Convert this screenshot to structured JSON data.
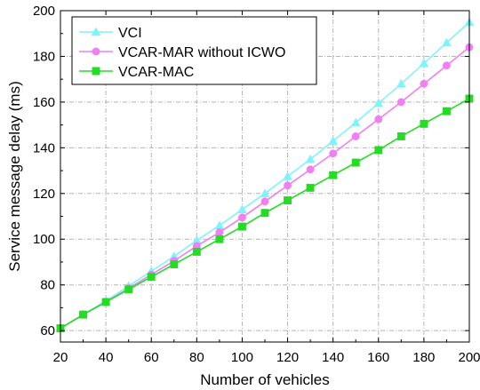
{
  "chart_data": {
    "type": "line",
    "xlabel": "Number of vehicles",
    "ylabel": "Service message delay (ms)",
    "xlim": [
      20,
      200
    ],
    "ylim": [
      55,
      200
    ],
    "xticks": [
      20,
      40,
      60,
      80,
      100,
      120,
      140,
      160,
      180,
      200
    ],
    "yticks": [
      60,
      80,
      100,
      120,
      140,
      160,
      180,
      200
    ],
    "grid": true,
    "legend_position": "top-left",
    "x": [
      20,
      30,
      40,
      50,
      60,
      70,
      80,
      90,
      100,
      110,
      120,
      130,
      140,
      150,
      160,
      170,
      180,
      190,
      200
    ],
    "series": [
      {
        "name": "VCI",
        "color": "#7ff3fb",
        "marker": "triangle",
        "values": [
          61,
          67,
          73,
          79.5,
          86,
          92.5,
          99.5,
          106,
          113,
          120,
          127.5,
          135,
          143,
          151,
          159.5,
          168,
          177,
          186,
          195
        ]
      },
      {
        "name": "VCAR-MAR without ICWO",
        "color": "#f27ef4",
        "marker": "circle",
        "values": [
          61,
          67,
          72.5,
          78.5,
          84.5,
          90.5,
          97,
          103,
          109.5,
          116.5,
          123.5,
          130.5,
          137.5,
          145,
          152.5,
          160,
          168,
          176,
          184
        ]
      },
      {
        "name": "VCAR-MAC",
        "color": "#22dd22",
        "marker": "square",
        "values": [
          61,
          67,
          72.5,
          78,
          83.5,
          89,
          94.5,
          100,
          105.5,
          111.5,
          117,
          122.5,
          128,
          133.5,
          139,
          145,
          150.5,
          156,
          161.5
        ]
      }
    ]
  }
}
